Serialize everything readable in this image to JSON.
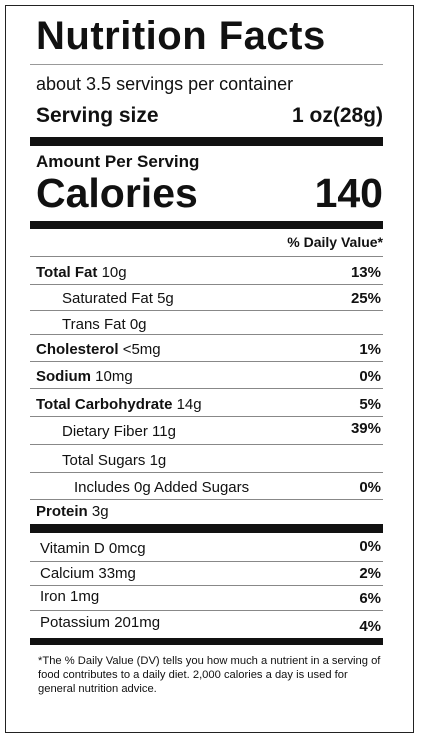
{
  "title": "Nutrition Facts",
  "servings_per_container": "about 3.5 servings per container",
  "serving_size": {
    "label": "Serving size",
    "value": "1 oz(28g)"
  },
  "amount_per_serving": "Amount Per Serving",
  "calories": {
    "label": "Calories",
    "value": "140"
  },
  "daily_value_header": "% Daily Value*",
  "nutrients": [
    {
      "name": "Total Fat",
      "amount": "10g",
      "dv": "13%"
    },
    {
      "name": "Saturated Fat",
      "amount": "5g",
      "dv": "25%"
    },
    {
      "name": "Trans Fat",
      "amount": "0g",
      "dv": ""
    },
    {
      "name": "Cholesterol",
      "amount": "<5mg",
      "dv": "1%"
    },
    {
      "name": "Sodium",
      "amount": "10mg",
      "dv": "0%"
    },
    {
      "name": "Total Carbohydrate",
      "amount": "14g",
      "dv": "5%"
    },
    {
      "name": "Dietary Fiber",
      "amount": "11g",
      "dv": "39%"
    },
    {
      "name": "Total Sugars",
      "amount": "1g",
      "dv": ""
    },
    {
      "name": "Includes 0g Added Sugars",
      "amount": "",
      "dv": "0%"
    },
    {
      "name": "Protein",
      "amount": "3g",
      "dv": ""
    }
  ],
  "vitamins": [
    {
      "name": "Vitamin D",
      "amount": "0mcg",
      "dv": "0%"
    },
    {
      "name": "Calcium",
      "amount": "33mg",
      "dv": "2%"
    },
    {
      "name": "Iron",
      "amount": "1mg",
      "dv": "6%"
    },
    {
      "name": "Potassium",
      "amount": "201mg",
      "dv": "4%"
    }
  ],
  "footnote": "*The % Daily Value (DV) tells you how much a nutrient in a serving of food contributes to a daily diet. 2,000 calories a day is used for general nutrition advice."
}
